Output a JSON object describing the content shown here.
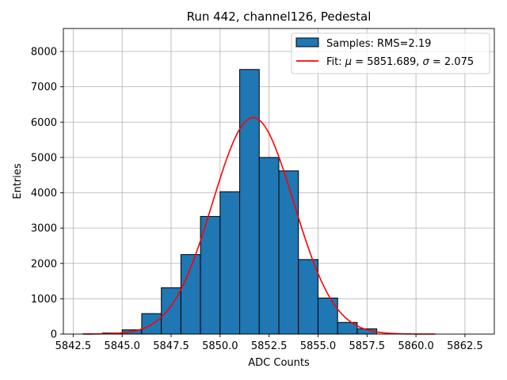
{
  "chart_data": {
    "type": "bar",
    "title": "Run 442, channel126, Pedestal",
    "xlabel": "ADC Counts",
    "ylabel": "Entries",
    "xlim": [
      5842.0,
      5864.0
    ],
    "ylim": [
      0,
      8650
    ],
    "xticks": [
      5842.5,
      5845.0,
      5847.5,
      5850.0,
      5852.5,
      5855.0,
      5857.5,
      5860.0,
      5862.5
    ],
    "xtick_labels": [
      "5842.5",
      "5845.0",
      "5847.5",
      "5850.0",
      "5852.5",
      "5855.0",
      "5857.5",
      "5860.0",
      "5862.5"
    ],
    "yticks": [
      0,
      1000,
      2000,
      3000,
      4000,
      5000,
      6000,
      7000,
      8000
    ],
    "ytick_labels": [
      "0",
      "1000",
      "2000",
      "3000",
      "4000",
      "5000",
      "6000",
      "7000",
      "8000"
    ],
    "grid": true,
    "legend_position": "top-right",
    "histogram": {
      "name": "Samples: RMS=2.19",
      "bin_edges": [
        5843.0,
        5844.0,
        5845.0,
        5846.0,
        5847.0,
        5848.0,
        5849.0,
        5850.0,
        5851.0,
        5852.0,
        5853.0,
        5854.0,
        5855.0,
        5856.0,
        5857.0,
        5858.0
      ],
      "values": [
        10,
        30,
        120,
        580,
        1310,
        2250,
        3330,
        4030,
        7490,
        5000,
        4620,
        2110,
        1020,
        330,
        150
      ],
      "color": "#1f77b4",
      "edge_color": "#000000"
    },
    "fit": {
      "label_prefix": "Fit: ",
      "label_mu": "μ",
      "label_mid": " = 5851.689, ",
      "label_sigma": "σ",
      "label_suffix": " = 2.075",
      "mu": 5851.689,
      "sigma": 2.075,
      "amplitude": 6130,
      "x_range": [
        5843.0,
        5861.0
      ],
      "color": "#ff0000"
    }
  }
}
